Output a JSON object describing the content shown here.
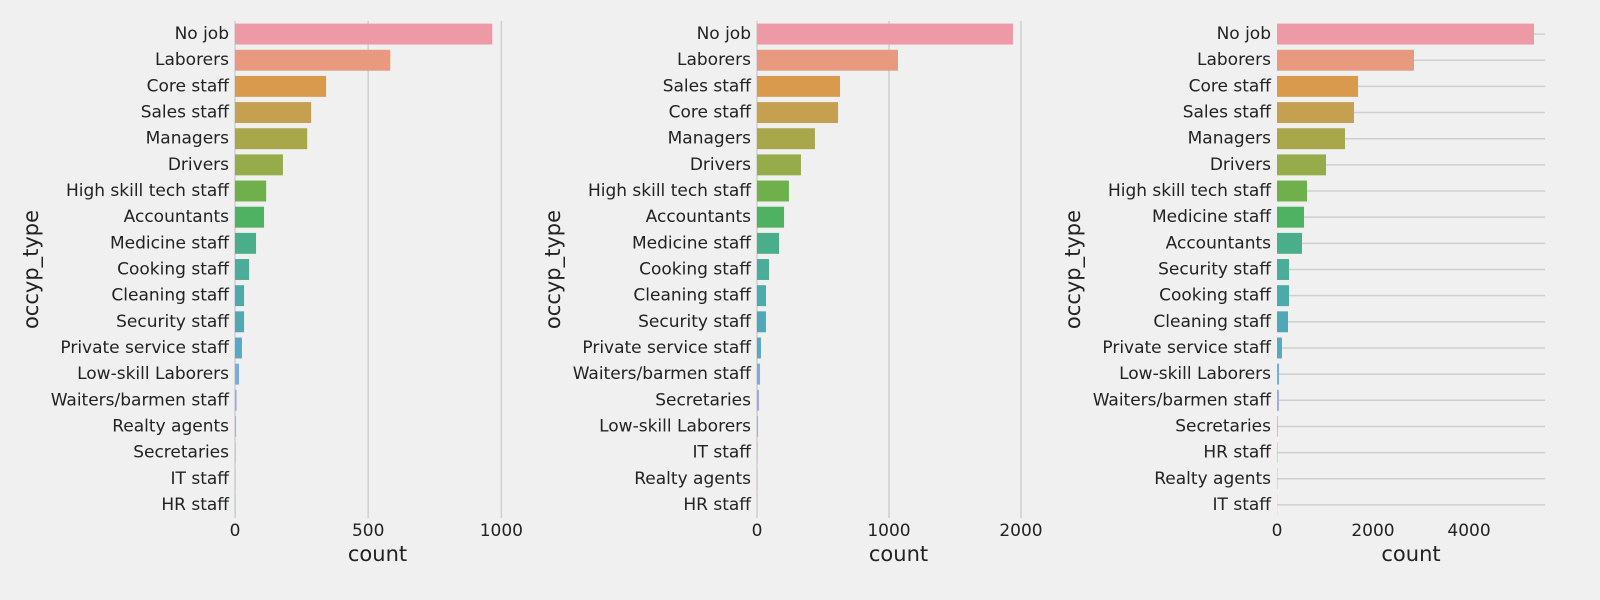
{
  "chart_data": [
    {
      "type": "barh",
      "ylabel": "occyp_type",
      "xlabel": "count",
      "grid": "x",
      "categories": [
        "No job",
        "Laborers",
        "Core staff",
        "Sales staff",
        "Managers",
        "Drivers",
        "High skill tech staff",
        "Accountants",
        "Medicine staff",
        "Cooking staff",
        "Cleaning staff",
        "Security staff",
        "Private service staff",
        "Low-skill Laborers",
        "Waiters/barmen staff",
        "Realty agents",
        "Secretaries",
        "IT staff",
        "HR staff"
      ],
      "values": [
        966,
        583,
        342,
        286,
        271,
        180,
        117,
        109,
        79,
        53,
        34,
        34,
        26,
        15,
        6,
        4,
        2,
        1,
        1
      ],
      "colors": [
        "#ee99a6",
        "#e99a7e",
        "#d99a4e",
        "#c4a050",
        "#a8a74a",
        "#96ab4a",
        "#6fb04c",
        "#4fb162",
        "#4aae8a",
        "#4aac99",
        "#4caaa8",
        "#4fa8b6",
        "#55a7cc",
        "#7aa9e6",
        "#a0a6ea",
        "#c39fe8",
        "#d99ae4",
        "#e797d0",
        "#ed95bb"
      ],
      "xlim": [
        0,
        1070
      ],
      "xticks": [
        0,
        500,
        1000
      ]
    },
    {
      "type": "barh",
      "ylabel": "occyp_type",
      "xlabel": "count",
      "grid": "x",
      "categories": [
        "No job",
        "Laborers",
        "Sales staff",
        "Core staff",
        "Managers",
        "Drivers",
        "High skill tech staff",
        "Accountants",
        "Medicine staff",
        "Cooking staff",
        "Cleaning staff",
        "Security staff",
        "Private service staff",
        "Waiters/barmen staff",
        "Secretaries",
        "Low-skill Laborers",
        "IT staff",
        "Realty agents",
        "HR staff"
      ],
      "values": [
        1939,
        1068,
        629,
        614,
        439,
        333,
        242,
        205,
        167,
        91,
        68,
        68,
        30,
        23,
        15,
        8,
        3,
        2,
        1
      ],
      "colors": [
        "#ee99a6",
        "#e99a7e",
        "#d99a4e",
        "#c4a050",
        "#a8a74a",
        "#96ab4a",
        "#6fb04c",
        "#4fb162",
        "#4aae8a",
        "#4aac99",
        "#4caaa8",
        "#4fa8b6",
        "#55a7cc",
        "#7aa9e6",
        "#a0a6ea",
        "#c39fe8",
        "#d99ae4",
        "#e797d0",
        "#ed95bb"
      ],
      "xlim": [
        0,
        2144
      ],
      "xticks": [
        0,
        1000,
        2000
      ]
    },
    {
      "type": "barh",
      "ylabel": "occyp_type",
      "xlabel": "count",
      "grid": "y",
      "categories": [
        "No job",
        "Laborers",
        "Core staff",
        "Sales staff",
        "Managers",
        "Drivers",
        "High skill tech staff",
        "Medicine staff",
        "Accountants",
        "Security staff",
        "Cooking staff",
        "Cleaning staff",
        "Private service staff",
        "Low-skill Laborers",
        "Waiters/barmen staff",
        "Secretaries",
        "HR staff",
        "Realty agents",
        "IT staff"
      ],
      "values": [
        5354,
        2854,
        1688,
        1604,
        1417,
        1021,
        625,
        563,
        521,
        250,
        250,
        229,
        104,
        42,
        40,
        15,
        10,
        8,
        3
      ],
      "colors": [
        "#ee99a6",
        "#e99a7e",
        "#d99a4e",
        "#c4a050",
        "#a8a74a",
        "#96ab4a",
        "#6fb04c",
        "#4fb162",
        "#4aae8a",
        "#4aac99",
        "#4caaa8",
        "#4fa8b6",
        "#55a7cc",
        "#7aa9e6",
        "#a0a6ea",
        "#c39fe8",
        "#d99ae4",
        "#e797d0",
        "#ed95bb"
      ],
      "xlim": [
        0,
        5583
      ],
      "xticks": [
        0,
        2000,
        4000
      ]
    }
  ]
}
